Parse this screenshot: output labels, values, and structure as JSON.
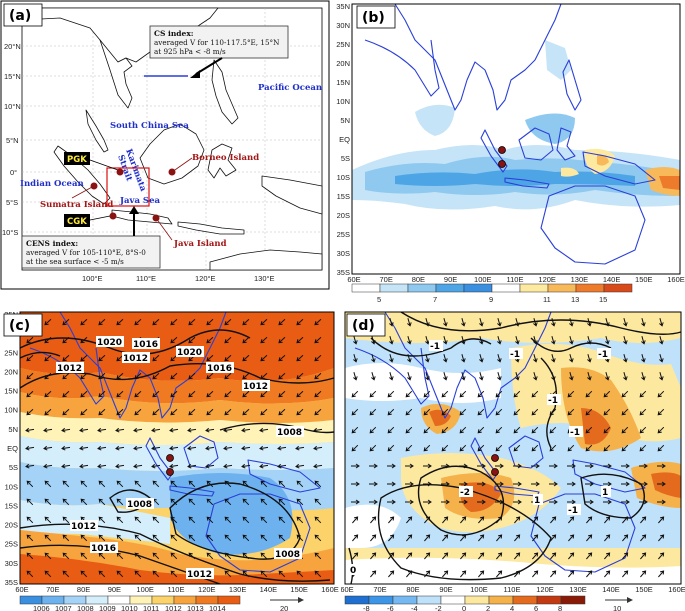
{
  "panels": {
    "a": {
      "label": "(a)",
      "lat_ticks": [
        "20°N",
        "15°N",
        "10°N",
        "5°N",
        "0°",
        "5°S",
        "10°S"
      ],
      "lon_ticks": [
        "100°E",
        "110°E",
        "120°E",
        "130°E"
      ],
      "places": {
        "pacific": "Pacific Ocean",
        "scs": "South China Sea",
        "indian": "Indian Ocean",
        "borneo": "Borneo Island",
        "sumatra": "Sumatra Island",
        "java_sea": "Java Sea",
        "java_island": "Java Island",
        "karimata_1": "Karimata",
        "karimata_2": "Strait"
      },
      "stations": {
        "pgk": "PGK",
        "cgk": "CGK"
      },
      "cs_index": [
        "CS index:",
        "averaged V for 110-117.5°E, 15°N",
        "at 925 hPa < -8 m/s"
      ],
      "cens_index": [
        "CENS index:",
        "averaged V for 105-110°E, 8°S-0",
        "at the sea surface < -5 m/s"
      ]
    },
    "b": {
      "label": "(b)",
      "lat_ticks": [
        "35N",
        "30N",
        "25N",
        "20N",
        "15N",
        "10N",
        "5N",
        "EQ",
        "5S",
        "10S",
        "15S",
        "20S",
        "25S",
        "30S",
        "35S"
      ],
      "lon_ticks": [
        "60E",
        "70E",
        "80E",
        "90E",
        "100E",
        "110E",
        "120E",
        "130E",
        "140E",
        "150E",
        "160E"
      ],
      "colorbar_labels": [
        "5",
        "7",
        "9",
        "11",
        "13",
        "15"
      ]
    },
    "c": {
      "label": "(c)",
      "lat_ticks": [
        "35N",
        "30N",
        "25N",
        "20N",
        "15N",
        "10N",
        "5N",
        "EQ",
        "5S",
        "10S",
        "15S",
        "20S",
        "25S",
        "30S",
        "35S"
      ],
      "lon_ticks": [
        "60E",
        "70E",
        "80E",
        "90E",
        "100E",
        "110E",
        "120E",
        "130E",
        "140E",
        "150E",
        "160E"
      ],
      "contour_labels": [
        "1020",
        "1016",
        "1012",
        "1020",
        "1012",
        "1016",
        "1012",
        "1008",
        "1008",
        "1012",
        "1016",
        "1008",
        "1012"
      ],
      "colorbar_labels": [
        "1006",
        "1007",
        "1008",
        "1009",
        "1010",
        "1011",
        "1012",
        "1013",
        "1014"
      ],
      "ref_vector": "20"
    },
    "d": {
      "label": "(d)",
      "lat_ticks": [],
      "lon_ticks": [
        "60E",
        "70E",
        "80E",
        "90E",
        "100E",
        "110E",
        "120E",
        "130E",
        "140E",
        "150E",
        "160E"
      ],
      "contour_labels": [
        "-1",
        "-1",
        "-1",
        "-1",
        "-1",
        "-1",
        "-2",
        "1",
        "1",
        "0"
      ],
      "colorbar_labels": [
        "-8",
        "-6",
        "-4",
        "-2",
        "0",
        "2",
        "4",
        "6",
        "8"
      ],
      "ref_vector": "10"
    }
  },
  "colors": {
    "coast_blue": "#2a3fd8",
    "seq_b": [
      "#ffffff",
      "#c6e4f7",
      "#8fc9f0",
      "#4ea5e6",
      "#ffffff",
      "#fde9a0",
      "#f7b95a",
      "#ee7a2c",
      "#d94a1a"
    ],
    "slp_c": [
      "#3a8fe0",
      "#6db2ef",
      "#a4d3f7",
      "#d4eefc",
      "#fff3b8",
      "#fbd36a",
      "#f8a43e",
      "#f07a22",
      "#e85c14"
    ],
    "anom_d": [
      "#1e6fd0",
      "#3d95e8",
      "#76b8f2",
      "#bfe1fa",
      "#ffffff",
      "#fde8a0",
      "#f5b24a",
      "#e46a1e",
      "#c33a12",
      "#8a1a08"
    ]
  }
}
